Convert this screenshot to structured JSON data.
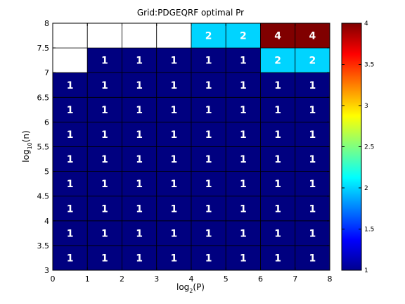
{
  "chart_data": {
    "type": "heatmap",
    "title": "Grid:PDGEQRF optimal Pr",
    "xlabel": {
      "base": "log",
      "sub": "2",
      "tail": "(P)"
    },
    "ylabel": {
      "base": "log",
      "sub": "10",
      "tail": "(n)"
    },
    "x_bins": [
      0,
      1,
      2,
      3,
      4,
      5,
      6,
      7,
      8
    ],
    "y_bins": [
      3,
      3.5,
      4,
      4.5,
      5,
      5.5,
      6,
      6.5,
      7,
      7.5,
      8
    ],
    "xlim": [
      0,
      8
    ],
    "ylim": [
      3,
      8
    ],
    "x_ticks": [
      "0",
      "1",
      "2",
      "3",
      "4",
      "5",
      "6",
      "7",
      "8"
    ],
    "y_ticks": [
      "3",
      "3.5",
      "4",
      "4.5",
      "5",
      "5.5",
      "6",
      "6.5",
      "7",
      "7.5",
      "8"
    ],
    "values": [
      [
        1,
        1,
        1,
        1,
        1,
        1,
        1,
        1
      ],
      [
        1,
        1,
        1,
        1,
        1,
        1,
        1,
        1
      ],
      [
        1,
        1,
        1,
        1,
        1,
        1,
        1,
        1
      ],
      [
        1,
        1,
        1,
        1,
        1,
        1,
        1,
        1
      ],
      [
        1,
        1,
        1,
        1,
        1,
        1,
        1,
        1
      ],
      [
        1,
        1,
        1,
        1,
        1,
        1,
        1,
        1
      ],
      [
        1,
        1,
        1,
        1,
        1,
        1,
        1,
        1
      ],
      [
        1,
        1,
        1,
        1,
        1,
        1,
        1,
        1
      ],
      [
        null,
        1,
        1,
        1,
        1,
        1,
        2,
        2
      ],
      [
        null,
        null,
        null,
        null,
        2,
        2,
        4,
        4
      ]
    ],
    "colorbar": {
      "range": [
        1,
        4
      ],
      "ticks": [
        "1",
        "1.5",
        "2",
        "2.5",
        "3",
        "3.5",
        "4"
      ],
      "colormap": "jet"
    },
    "missing_color": "#ffffff",
    "grid": true
  }
}
